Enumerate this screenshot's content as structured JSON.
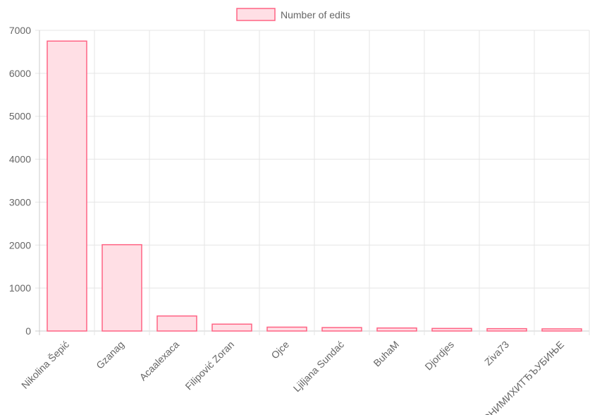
{
  "chart_data": {
    "type": "bar",
    "legend": {
      "label": "Number of edits",
      "position": "top"
    },
    "categories": [
      "Nikolina Šepić",
      "Gzanag",
      "Acaalexaca",
      "Filipović Zoran",
      "Ojce",
      "Ljiljana Sundać",
      "BuhaM",
      "Djordjes",
      "Ziva73",
      "ЗВОНИМИХИТЂЪУБИЊЕ"
    ],
    "series": [
      {
        "name": "Number of edits",
        "values": [
          6750,
          2010,
          350,
          160,
          90,
          80,
          70,
          60,
          55,
          50
        ]
      }
    ],
    "yticks": [
      0,
      1000,
      2000,
      3000,
      4000,
      5000,
      6000,
      7000
    ],
    "ylim": [
      0,
      7000
    ],
    "grid": true,
    "colors": {
      "bar_fill": "#ffdfe5",
      "bar_stroke": "#ff6384",
      "grid": "#e5e5e5",
      "axis": "#cccccc",
      "text": "#666666"
    }
  }
}
